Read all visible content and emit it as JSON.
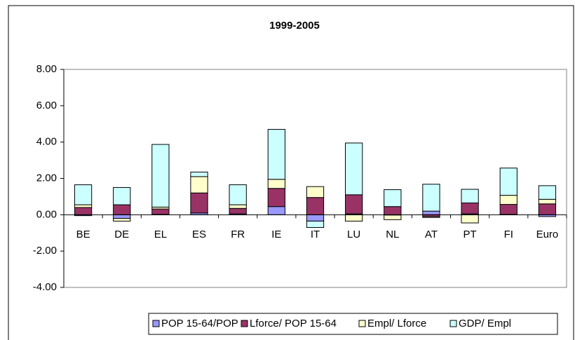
{
  "chart_data": {
    "type": "stacked_bar",
    "title": "1999-2005",
    "categories": [
      "BE",
      "DE",
      "EL",
      "ES",
      "FR",
      "IE",
      "IT",
      "LU",
      "NL",
      "AT",
      "PT",
      "FI",
      "Euro"
    ],
    "series": [
      {
        "name": "POP 15-64/POP",
        "color": "#9999ff",
        "values": [
          -0.05,
          -0.2,
          0.02,
          0.1,
          0.05,
          0.45,
          -0.35,
          0.05,
          -0.02,
          0.2,
          0.05,
          0.02,
          -0.1
        ]
      },
      {
        "name": "Lforce/ POP 15-64",
        "color": "#993366",
        "values": [
          0.4,
          0.55,
          0.3,
          1.1,
          0.3,
          1.0,
          0.95,
          1.05,
          0.45,
          -0.1,
          0.6,
          0.55,
          0.6
        ]
      },
      {
        "name": "Empl/ Lforce",
        "color": "#ffffcc",
        "values": [
          0.15,
          -0.15,
          0.1,
          0.9,
          0.2,
          0.5,
          0.6,
          -0.35,
          -0.25,
          -0.05,
          -0.45,
          0.5,
          0.25
        ]
      },
      {
        "name": "GDP/ Empl",
        "color": "#ccffff",
        "values": [
          1.1,
          0.95,
          3.45,
          0.25,
          1.1,
          2.75,
          -0.35,
          2.85,
          0.93,
          1.48,
          0.75,
          1.5,
          0.75
        ]
      }
    ],
    "ylim": [
      -4,
      8
    ],
    "yticks": [
      {
        "value": -4,
        "label": "-4.00"
      },
      {
        "value": -2,
        "label": "-2.00"
      },
      {
        "value": 0,
        "label": "0.00"
      },
      {
        "value": 2,
        "label": "2.00"
      },
      {
        "value": 4,
        "label": "4.00"
      },
      {
        "value": 6,
        "label": "6.00"
      },
      {
        "value": 8,
        "label": "8.00"
      }
    ],
    "grid": false,
    "legend": "bottom"
  }
}
